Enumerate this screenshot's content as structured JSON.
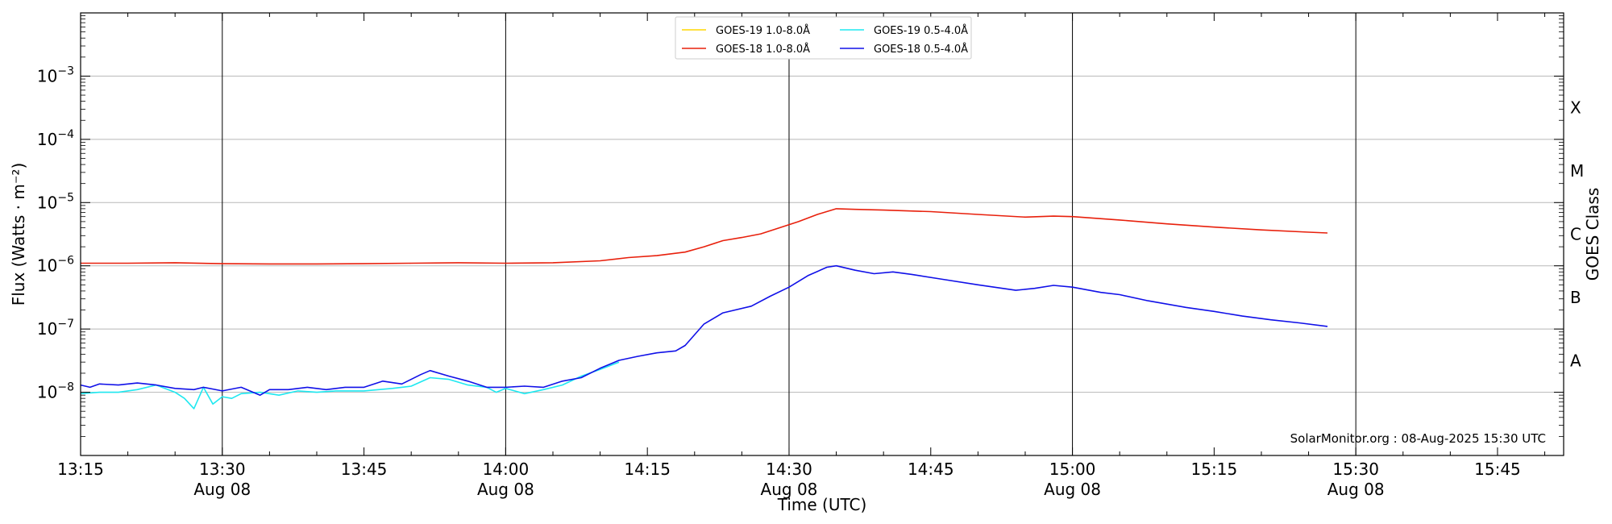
{
  "chart_data": {
    "type": "line",
    "xlabel": "Time (UTC)",
    "ylabel": "Flux (Watts · m⁻²)",
    "y2label": "GOES Class",
    "yscale": "log",
    "ylim": [
      1e-09,
      0.01
    ],
    "xlim": [
      "13:15",
      "15:52"
    ],
    "grid": "horizontal at decades",
    "legend_placement": "top-center",
    "credit": "SolarMonitor.org : 08-Aug-2025 15:30 UTC",
    "x_ticks": [
      {
        "t": "13:15",
        "label": "13:15",
        "date": ""
      },
      {
        "t": "13:30",
        "label": "13:30",
        "date": "Aug 08"
      },
      {
        "t": "13:45",
        "label": "13:45",
        "date": ""
      },
      {
        "t": "14:00",
        "label": "14:00",
        "date": "Aug 08"
      },
      {
        "t": "14:15",
        "label": "14:15",
        "date": ""
      },
      {
        "t": "14:30",
        "label": "14:30",
        "date": "Aug 08"
      },
      {
        "t": "14:45",
        "label": "14:45",
        "date": ""
      },
      {
        "t": "15:00",
        "label": "15:00",
        "date": "Aug 08"
      },
      {
        "t": "15:15",
        "label": "15:15",
        "date": ""
      },
      {
        "t": "15:30",
        "label": "15:30",
        "date": "Aug 08"
      },
      {
        "t": "15:45",
        "label": "15:45",
        "date": ""
      }
    ],
    "vlines": [
      "13:30",
      "14:00",
      "14:30",
      "15:00",
      "15:30"
    ],
    "y_ticks": [
      {
        "exp": -8,
        "label": "10",
        "sup": "−8"
      },
      {
        "exp": -7,
        "label": "10",
        "sup": "−7"
      },
      {
        "exp": -6,
        "label": "10",
        "sup": "−6"
      },
      {
        "exp": -5,
        "label": "10",
        "sup": "−5"
      },
      {
        "exp": -4,
        "label": "10",
        "sup": "−4"
      },
      {
        "exp": -3,
        "label": "10",
        "sup": "−3"
      }
    ],
    "goes_classes": [
      {
        "label": "A",
        "exp": -7.5
      },
      {
        "label": "B",
        "exp": -6.5
      },
      {
        "label": "C",
        "exp": -5.5
      },
      {
        "label": "M",
        "exp": -4.5
      },
      {
        "label": "X",
        "exp": -3.5
      }
    ],
    "series": [
      {
        "name": "GOES-19 1.0-8.0Å",
        "color": "#ffd700",
        "points": []
      },
      {
        "name": "GOES-18 1.0-8.0Å",
        "color": "#e8200c",
        "points": [
          [
            "13:15",
            1.1e-06
          ],
          [
            "13:20",
            1.1e-06
          ],
          [
            "13:25",
            1.12e-06
          ],
          [
            "13:30",
            1.08e-06
          ],
          [
            "13:35",
            1.07e-06
          ],
          [
            "13:40",
            1.07e-06
          ],
          [
            "13:45",
            1.08e-06
          ],
          [
            "13:50",
            1.1e-06
          ],
          [
            "13:55",
            1.12e-06
          ],
          [
            "14:00",
            1.1e-06
          ],
          [
            "14:05",
            1.12e-06
          ],
          [
            "14:10",
            1.2e-06
          ],
          [
            "14:13",
            1.35e-06
          ],
          [
            "14:16",
            1.45e-06
          ],
          [
            "14:19",
            1.65e-06
          ],
          [
            "14:21",
            2e-06
          ],
          [
            "14:23",
            2.5e-06
          ],
          [
            "14:25",
            2.8e-06
          ],
          [
            "14:27",
            3.2e-06
          ],
          [
            "14:29",
            4e-06
          ],
          [
            "14:31",
            5e-06
          ],
          [
            "14:33",
            6.5e-06
          ],
          [
            "14:35",
            8e-06
          ],
          [
            "14:37",
            7.8e-06
          ],
          [
            "14:40",
            7.6e-06
          ],
          [
            "14:45",
            7.2e-06
          ],
          [
            "14:50",
            6.5e-06
          ],
          [
            "14:55",
            5.9e-06
          ],
          [
            "14:58",
            6.1e-06
          ],
          [
            "15:00",
            6e-06
          ],
          [
            "15:05",
            5.3e-06
          ],
          [
            "15:10",
            4.6e-06
          ],
          [
            "15:15",
            4.1e-06
          ],
          [
            "15:20",
            3.7e-06
          ],
          [
            "15:25",
            3.4e-06
          ],
          [
            "15:27",
            3.3e-06
          ]
        ]
      },
      {
        "name": "GOES-19 0.5-4.0Å",
        "color": "#1fe8f0",
        "points": [
          [
            "13:15",
            9.5e-09
          ],
          [
            "13:17",
            1e-08
          ],
          [
            "13:19",
            1e-08
          ],
          [
            "13:21",
            1.1e-08
          ],
          [
            "13:23",
            1.3e-08
          ],
          [
            "13:25",
            1e-08
          ],
          [
            "13:26",
            8e-09
          ],
          [
            "13:27",
            5.5e-09
          ],
          [
            "13:28",
            1.2e-08
          ],
          [
            "13:29",
            6.5e-09
          ],
          [
            "13:30",
            8.5e-09
          ],
          [
            "13:31",
            8e-09
          ],
          [
            "13:32",
            9.5e-09
          ],
          [
            "13:34",
            1e-08
          ],
          [
            "13:36",
            9e-09
          ],
          [
            "13:38",
            1.05e-08
          ],
          [
            "13:40",
            1e-08
          ],
          [
            "13:42",
            1.05e-08
          ],
          [
            "13:45",
            1.05e-08
          ],
          [
            "13:48",
            1.15e-08
          ],
          [
            "13:50",
            1.25e-08
          ],
          [
            "13:52",
            1.7e-08
          ],
          [
            "13:54",
            1.6e-08
          ],
          [
            "13:56",
            1.3e-08
          ],
          [
            "13:58",
            1.2e-08
          ],
          [
            "13:59",
            1e-08
          ],
          [
            "14:00",
            1.15e-08
          ],
          [
            "14:02",
            9.5e-09
          ],
          [
            "14:04",
            1.1e-08
          ],
          [
            "14:06",
            1.3e-08
          ],
          [
            "14:08",
            1.8e-08
          ],
          [
            "14:10",
            2.3e-08
          ],
          [
            "14:12",
            3e-08
          ]
        ]
      },
      {
        "name": "GOES-18 0.5-4.0Å",
        "color": "#1010e8",
        "points": [
          [
            "13:15",
            1.3e-08
          ],
          [
            "13:16",
            1.2e-08
          ],
          [
            "13:17",
            1.35e-08
          ],
          [
            "13:19",
            1.3e-08
          ],
          [
            "13:21",
            1.4e-08
          ],
          [
            "13:23",
            1.3e-08
          ],
          [
            "13:25",
            1.15e-08
          ],
          [
            "13:27",
            1.1e-08
          ],
          [
            "13:28",
            1.2e-08
          ],
          [
            "13:30",
            1.05e-08
          ],
          [
            "13:32",
            1.2e-08
          ],
          [
            "13:34",
            9e-09
          ],
          [
            "13:35",
            1.1e-08
          ],
          [
            "13:37",
            1.1e-08
          ],
          [
            "13:39",
            1.2e-08
          ],
          [
            "13:41",
            1.1e-08
          ],
          [
            "13:43",
            1.2e-08
          ],
          [
            "13:45",
            1.2e-08
          ],
          [
            "13:47",
            1.5e-08
          ],
          [
            "13:49",
            1.35e-08
          ],
          [
            "13:51",
            1.9e-08
          ],
          [
            "13:52",
            2.2e-08
          ],
          [
            "13:54",
            1.8e-08
          ],
          [
            "13:56",
            1.5e-08
          ],
          [
            "13:58",
            1.2e-08
          ],
          [
            "14:00",
            1.2e-08
          ],
          [
            "14:02",
            1.25e-08
          ],
          [
            "14:04",
            1.2e-08
          ],
          [
            "14:06",
            1.5e-08
          ],
          [
            "14:08",
            1.7e-08
          ],
          [
            "14:10",
            2.4e-08
          ],
          [
            "14:12",
            3.2e-08
          ],
          [
            "14:14",
            3.7e-08
          ],
          [
            "14:16",
            4.2e-08
          ],
          [
            "14:18",
            4.5e-08
          ],
          [
            "14:19",
            5.5e-08
          ],
          [
            "14:21",
            1.2e-07
          ],
          [
            "14:23",
            1.8e-07
          ],
          [
            "14:26",
            2.3e-07
          ],
          [
            "14:28",
            3.3e-07
          ],
          [
            "14:30",
            4.6e-07
          ],
          [
            "14:32",
            7e-07
          ],
          [
            "14:34",
            9.5e-07
          ],
          [
            "14:35",
            1e-06
          ],
          [
            "14:37",
            8.5e-07
          ],
          [
            "14:39",
            7.5e-07
          ],
          [
            "14:41",
            8e-07
          ],
          [
            "14:43",
            7.3e-07
          ],
          [
            "14:46",
            6.2e-07
          ],
          [
            "14:50",
            5e-07
          ],
          [
            "14:54",
            4.1e-07
          ],
          [
            "14:56",
            4.4e-07
          ],
          [
            "14:58",
            4.9e-07
          ],
          [
            "15:00",
            4.6e-07
          ],
          [
            "15:03",
            3.8e-07
          ],
          [
            "15:05",
            3.5e-07
          ],
          [
            "15:08",
            2.8e-07
          ],
          [
            "15:12",
            2.2e-07
          ],
          [
            "15:15",
            1.9e-07
          ],
          [
            "15:18",
            1.6e-07
          ],
          [
            "15:21",
            1.4e-07
          ],
          [
            "15:24",
            1.25e-07
          ],
          [
            "15:27",
            1.1e-07
          ]
        ]
      }
    ]
  }
}
